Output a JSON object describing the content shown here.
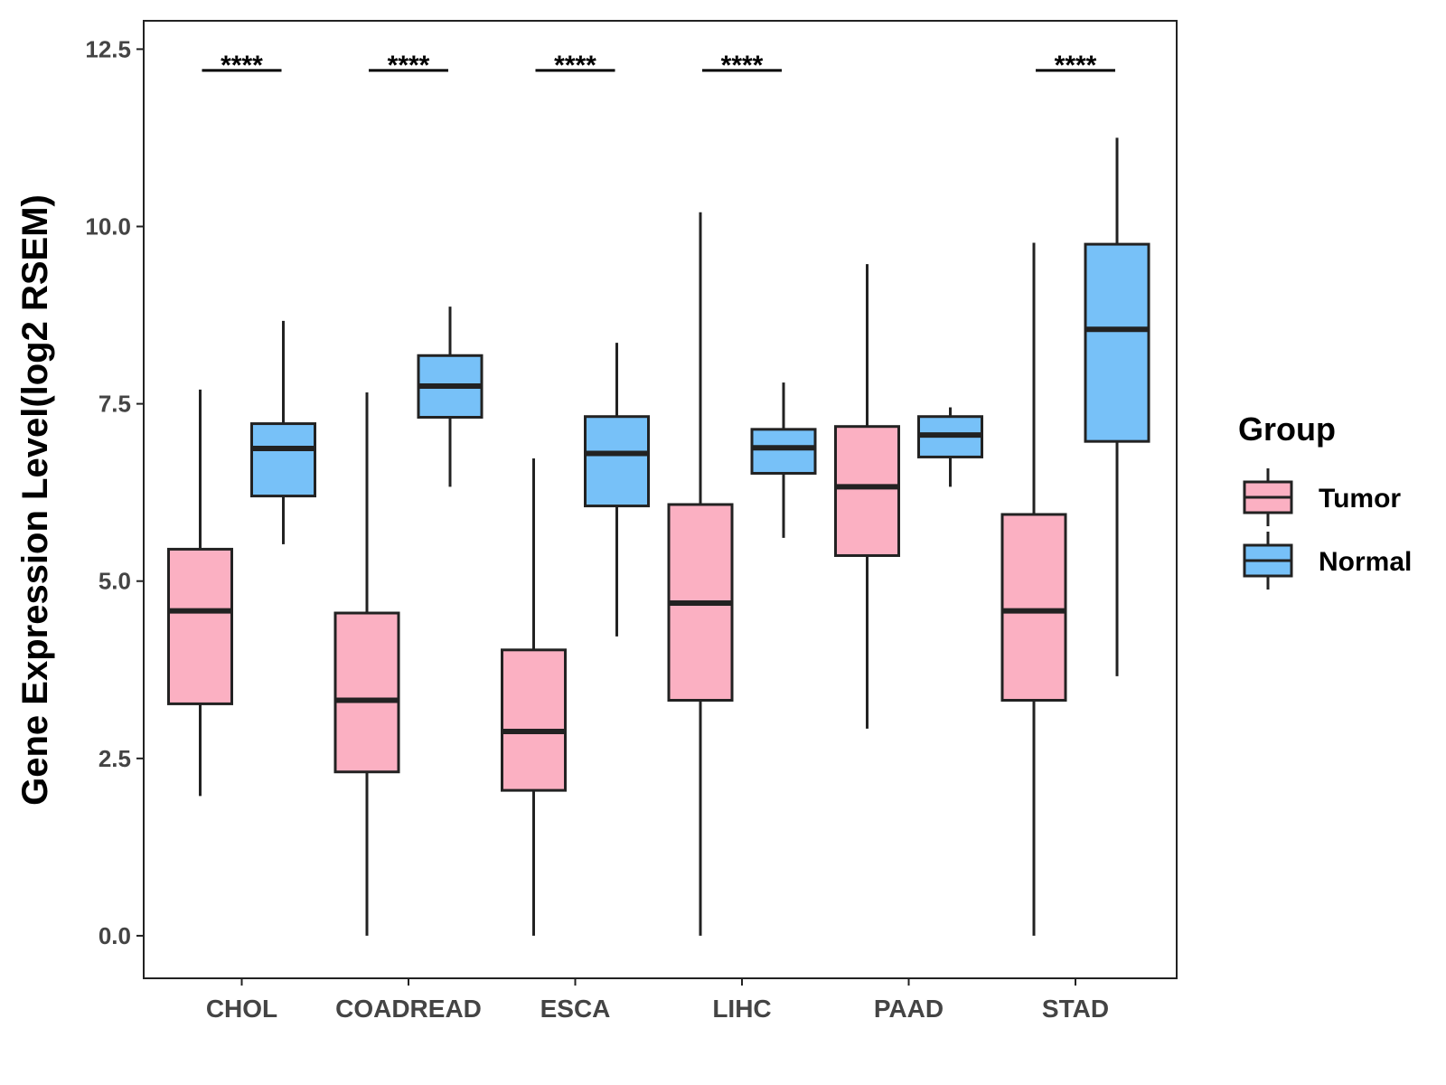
{
  "chart_data": {
    "type": "boxplot",
    "title": "",
    "xlabel": "",
    "ylabel": "Gene Expression Level(log2 RSEM)",
    "ylim": [
      -0.6,
      12.9
    ],
    "yticks": [
      0.0,
      2.5,
      5.0,
      7.5,
      10.0,
      12.5
    ],
    "ytick_labels": [
      "0.0",
      "2.5",
      "5.0",
      "7.5",
      "10.0",
      "12.5"
    ],
    "categories": [
      "CHOL",
      "COADREAD",
      "ESCA",
      "LIHC",
      "PAAD",
      "STAD"
    ],
    "legend": {
      "title": "Group",
      "position": "right",
      "entries": [
        {
          "name": "Tumor",
          "color": "#FBB0C2"
        },
        {
          "name": "Normal",
          "color": "#77C1F8"
        }
      ]
    },
    "series": [
      {
        "name": "Tumor",
        "color": "#FBB0C2",
        "boxes": [
          {
            "min": 1.97,
            "q1": 3.27,
            "median": 4.58,
            "q3": 5.45,
            "max": 7.7
          },
          {
            "min": 0.0,
            "q1": 2.31,
            "median": 3.32,
            "q3": 4.55,
            "max": 7.66
          },
          {
            "min": 0.0,
            "q1": 2.05,
            "median": 2.88,
            "q3": 4.03,
            "max": 6.73
          },
          {
            "min": 0.0,
            "q1": 3.32,
            "median": 4.69,
            "q3": 6.08,
            "max": 10.2
          },
          {
            "min": 2.92,
            "q1": 5.36,
            "median": 6.33,
            "q3": 7.18,
            "max": 9.47
          },
          {
            "min": 0.0,
            "q1": 3.32,
            "median": 4.58,
            "q3": 5.94,
            "max": 9.77
          }
        ]
      },
      {
        "name": "Normal",
        "color": "#77C1F8",
        "boxes": [
          {
            "min": 5.52,
            "q1": 6.2,
            "median": 6.87,
            "q3": 7.22,
            "max": 8.67
          },
          {
            "min": 6.33,
            "q1": 7.31,
            "median": 7.75,
            "q3": 8.18,
            "max": 8.87
          },
          {
            "min": 4.22,
            "q1": 6.06,
            "median": 6.8,
            "q3": 7.32,
            "max": 8.36
          },
          {
            "min": 5.61,
            "q1": 6.52,
            "median": 6.88,
            "q3": 7.14,
            "max": 7.8
          },
          {
            "min": 6.33,
            "q1": 6.75,
            "median": 7.06,
            "q3": 7.32,
            "max": 7.45
          },
          {
            "min": 3.66,
            "q1": 6.97,
            "median": 8.55,
            "q3": 9.75,
            "max": 11.25
          }
        ]
      }
    ],
    "significance": [
      {
        "category": "CHOL",
        "label": "****"
      },
      {
        "category": "COADREAD",
        "label": "****"
      },
      {
        "category": "ESCA",
        "label": "****"
      },
      {
        "category": "LIHC",
        "label": "****"
      },
      {
        "category": "PAAD",
        "label": ""
      },
      {
        "category": "STAD",
        "label": "****"
      }
    ]
  }
}
